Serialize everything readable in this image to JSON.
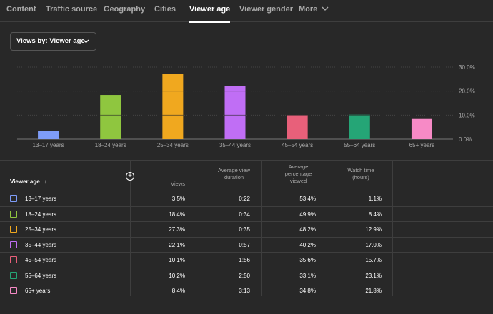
{
  "tabs": [
    {
      "label": "Content",
      "active": false
    },
    {
      "label": "Traffic source",
      "active": false
    },
    {
      "label": "Geography",
      "active": false
    },
    {
      "label": "Cities",
      "active": false
    },
    {
      "label": "Viewer age",
      "active": true
    },
    {
      "label": "Viewer gender",
      "active": false
    },
    {
      "label": "More",
      "active": false
    }
  ],
  "dropdown": {
    "label": "Views by: Viewer age"
  },
  "chart_data": {
    "type": "bar",
    "categories": [
      "13–17 years",
      "18–24 years",
      "25–34 years",
      "35–44 years",
      "45–54 years",
      "55–64 years",
      "65+ years"
    ],
    "values": [
      3.5,
      18.4,
      27.3,
      22.1,
      10.1,
      10.2,
      8.4
    ],
    "colors": [
      "#7e9cf7",
      "#8fc63f",
      "#f0a81f",
      "#c06ef5",
      "#e8607a",
      "#25a576",
      "#f78ac6"
    ],
    "yticks": [
      "0.0%",
      "10.0%",
      "20.0%",
      "30.0%"
    ],
    "ylim": [
      0,
      30
    ],
    "grid": true
  },
  "table": {
    "headers": {
      "age": "Viewer age",
      "views": "Views",
      "avg_duration": [
        "Average view",
        "duration"
      ],
      "avg_pct": [
        "Average",
        "percentage",
        "viewed"
      ],
      "watch_time": [
        "Watch time",
        "(hours)"
      ]
    },
    "rows": [
      {
        "age": "13–17 years",
        "views": "3.5%",
        "duration": "0:22",
        "pct": "53.4%",
        "watch": "1.1%",
        "color": "#7e9cf7"
      },
      {
        "age": "18–24 years",
        "views": "18.4%",
        "duration": "0:34",
        "pct": "49.9%",
        "watch": "8.4%",
        "color": "#8fc63f"
      },
      {
        "age": "25–34 years",
        "views": "27.3%",
        "duration": "0:35",
        "pct": "48.2%",
        "watch": "12.9%",
        "color": "#f0a81f"
      },
      {
        "age": "35–44 years",
        "views": "22.1%",
        "duration": "0:57",
        "pct": "40.2%",
        "watch": "17.0%",
        "color": "#c06ef5"
      },
      {
        "age": "45–54 years",
        "views": "10.1%",
        "duration": "1:56",
        "pct": "35.6%",
        "watch": "15.7%",
        "color": "#e8607a"
      },
      {
        "age": "55–64 years",
        "views": "10.2%",
        "duration": "2:50",
        "pct": "33.1%",
        "watch": "23.1%",
        "color": "#25a576"
      },
      {
        "age": "65+ years",
        "views": "8.4%",
        "duration": "3:13",
        "pct": "34.8%",
        "watch": "21.8%",
        "color": "#f78ac6"
      }
    ]
  }
}
